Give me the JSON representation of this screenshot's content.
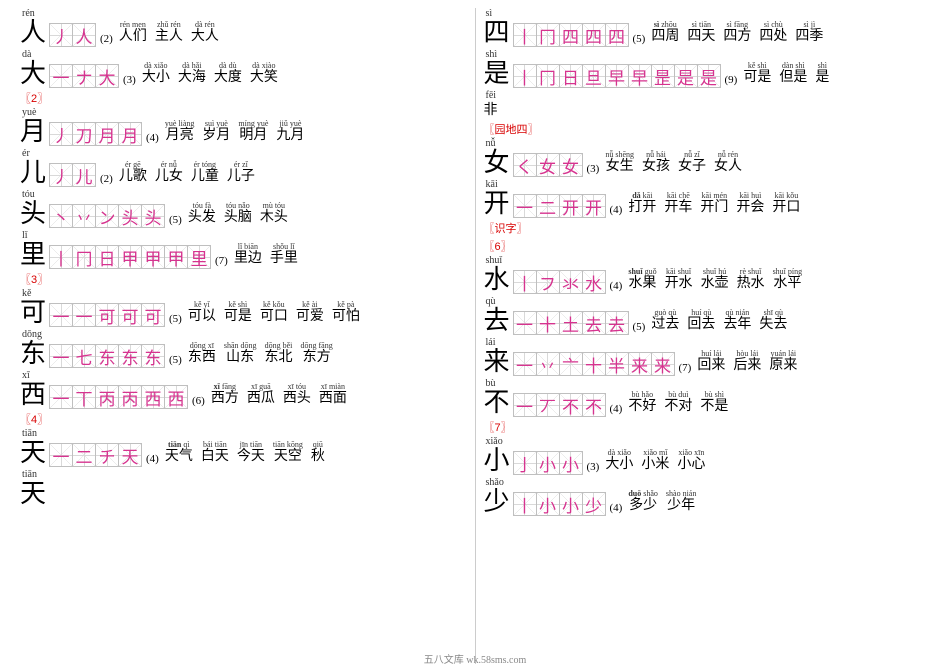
{
  "footer": "五八文库 wk.58sms.com",
  "colors": {
    "stroke": "#d6338f",
    "section": "#d80000",
    "grid": "#d9d9d9",
    "border": "#bfbfbf"
  },
  "left": [
    {
      "type": "entry",
      "pinyin": "rén",
      "char": "人",
      "strokes": [
        "丿",
        "人"
      ],
      "count": "(2)",
      "words": [
        [
          "rén men",
          "人们"
        ],
        [
          "zhǔ rén",
          "主人"
        ],
        [
          "dà rén",
          "大人"
        ]
      ]
    },
    {
      "type": "entry",
      "pinyin": "dà",
      "char": "大",
      "strokes": [
        "一",
        "ナ",
        "大"
      ],
      "count": "(3)",
      "words": [
        [
          "dà xiǎo",
          "大小"
        ],
        [
          "dà hǎi",
          "大海"
        ],
        [
          "dà dù",
          "大度"
        ],
        [
          "dà xiào",
          "大笑"
        ]
      ]
    },
    {
      "type": "section",
      "label": "〖2〗"
    },
    {
      "type": "entry",
      "pinyin": "yuè",
      "char": "月",
      "strokes": [
        "丿",
        "刀",
        "月",
        "月"
      ],
      "count": "(4)",
      "words": [
        [
          "yuè liàng",
          "月亮"
        ],
        [
          "suì yuè",
          "岁月"
        ],
        [
          "míng yuè",
          "明月"
        ],
        [
          "jiǔ yuè",
          "九月"
        ]
      ]
    },
    {
      "type": "entry",
      "pinyin": "ér",
      "char": "儿",
      "strokes": [
        "丿",
        "儿"
      ],
      "count": "(2)",
      "words": [
        [
          "ér gē",
          "儿歌"
        ],
        [
          "ér nǚ",
          "儿女"
        ],
        [
          "ér tóng",
          "儿童"
        ],
        [
          "ér zǐ",
          "儿子"
        ]
      ]
    },
    {
      "type": "entry",
      "pinyin": "tóu",
      "char": "头",
      "strokes": [
        "丶",
        "丷",
        "ン",
        "头",
        "头"
      ],
      "count": "(5)",
      "words": [
        [
          "tóu fà",
          "头发"
        ],
        [
          "tóu nǎo",
          "头脑"
        ],
        [
          "mù tóu",
          "木头"
        ]
      ]
    },
    {
      "type": "entry",
      "pinyin": "lǐ",
      "char": "里",
      "strokes": [
        "丨",
        "冂",
        "日",
        "甲",
        "甲",
        "甲",
        "里"
      ],
      "count": "(7)",
      "words": [
        [
          "lǐ biān",
          "里边"
        ],
        [
          "shǒu lǐ",
          "手里"
        ]
      ]
    },
    {
      "type": "section",
      "label": "〖3〗"
    },
    {
      "type": "entry",
      "pinyin": "kě",
      "char": "可",
      "strokes": [
        "一",
        "一",
        "可",
        "可",
        "可"
      ],
      "count": "(5)",
      "words": [
        [
          "kě yǐ",
          "可以"
        ],
        [
          "kě shì",
          "可是"
        ],
        [
          "kě kǒu",
          "可口"
        ],
        [
          "kě ài",
          "可爱"
        ],
        [
          "kě pà",
          "可怕"
        ]
      ]
    },
    {
      "type": "entry",
      "pinyin": "dōng",
      "char": "东",
      "strokes": [
        "一",
        "七",
        "东",
        "东",
        "东"
      ],
      "count": "(5)",
      "words": [
        [
          "dōng xī",
          "东西"
        ],
        [
          "shān dōng",
          "山东"
        ],
        [
          "dōng běi",
          "东北"
        ],
        [
          "dōng fāng",
          "东方"
        ]
      ]
    },
    {
      "type": "entry",
      "pinyin": "xī",
      "char": "西",
      "strokes": [
        "一",
        "丅",
        "丙",
        "丙",
        "西",
        "西"
      ],
      "count": "(6)",
      "words": [
        [
          "xī fāng",
          "西方",
          "bold"
        ],
        [
          "xī guā",
          "西瓜"
        ],
        [
          "xī tóu",
          "西头"
        ],
        [
          "xī miàn",
          "西面"
        ]
      ]
    },
    {
      "type": "section",
      "label": "〖4〗"
    },
    {
      "type": "entry",
      "pinyin": "tiān",
      "char": "天",
      "strokes": [
        "一",
        "二",
        "チ",
        "天"
      ],
      "count": "(4)",
      "words": [
        [
          "tiān qì",
          "天气",
          "bold"
        ],
        [
          "bái tiān",
          "白天"
        ],
        [
          "jīn tiān",
          "今天"
        ],
        [
          "tiān kōng",
          "天空"
        ],
        [
          "qiū",
          "秋"
        ]
      ]
    },
    {
      "type": "entry",
      "pinyin": "tiān",
      "char": "天",
      "strokes": [],
      "count": "",
      "words": []
    }
  ],
  "right": [
    {
      "type": "entry",
      "pinyin": "sì",
      "char": "四",
      "strokes": [
        "丨",
        "冂",
        "四",
        "四",
        "四"
      ],
      "count": "(5)",
      "words": [
        [
          "sì zhōu",
          "四周",
          "bold"
        ],
        [
          "sì tiān",
          "四天"
        ],
        [
          "sì fāng",
          "四方"
        ],
        [
          "sì chù",
          "四处"
        ],
        [
          "sì jì",
          "四季"
        ]
      ]
    },
    {
      "type": "entry",
      "pinyin": "shì",
      "char": "是",
      "strokes": [
        "丨",
        "冂",
        "日",
        "旦",
        "早",
        "早",
        "昰",
        "是",
        "是"
      ],
      "count": "(9)",
      "words": [
        [
          "kě shì",
          "可是"
        ],
        [
          "dàn shì",
          "但是"
        ],
        [
          "shì",
          "是"
        ]
      ]
    },
    {
      "type": "extra",
      "pinyin": "fēi",
      "char": "非"
    },
    {
      "type": "section",
      "label": "〖园地四〗"
    },
    {
      "type": "entry",
      "pinyin": "nǚ",
      "char": "女",
      "strokes": [
        "く",
        "女",
        "女"
      ],
      "count": "(3)",
      "words": [
        [
          "nǚ shēng",
          "女生"
        ],
        [
          "nǚ hái",
          "女孩"
        ],
        [
          "nǚ zǐ",
          "女子"
        ],
        [
          "nǚ rén",
          "女人"
        ]
      ]
    },
    {
      "type": "entry",
      "pinyin": "kāi",
      "char": "开",
      "strokes": [
        "一",
        "二",
        "开",
        "开"
      ],
      "count": "(4)",
      "words": [
        [
          "dǎ kāi",
          "打开",
          "bold"
        ],
        [
          "kāi chē",
          "开车"
        ],
        [
          "kāi mén",
          "开门"
        ],
        [
          "kāi huì",
          "开会"
        ],
        [
          "kāi kǒu",
          "开口"
        ]
      ]
    },
    {
      "type": "section",
      "label": "〖识字〗"
    },
    {
      "type": "section",
      "label": "〖6〗"
    },
    {
      "type": "entry",
      "pinyin": "shuǐ",
      "char": "水",
      "strokes": [
        "丨",
        "フ",
        "氺",
        "水"
      ],
      "count": "(4)",
      "words": [
        [
          "shuǐ guǒ",
          "水果",
          "bold"
        ],
        [
          "kāi shuǐ",
          "开水"
        ],
        [
          "shuǐ hú",
          "水壶"
        ],
        [
          "rè shuǐ",
          "热水"
        ],
        [
          "shuǐ píng",
          "水平"
        ]
      ]
    },
    {
      "type": "entry",
      "pinyin": "qù",
      "char": "去",
      "strokes": [
        "一",
        "十",
        "土",
        "去",
        "去"
      ],
      "count": "(5)",
      "words": [
        [
          "guò qù",
          "过去"
        ],
        [
          "huí qù",
          "回去"
        ],
        [
          "qù nián",
          "去年"
        ],
        [
          "shī qù",
          "失去"
        ]
      ]
    },
    {
      "type": "entry",
      "pinyin": "lái",
      "char": "来",
      "strokes": [
        "一",
        "丷",
        "亠",
        "十",
        "半",
        "来",
        "来"
      ],
      "count": "(7)",
      "words": [
        [
          "huí lái",
          "回来"
        ],
        [
          "hòu lái",
          "后来"
        ],
        [
          "yuán lái",
          "原来"
        ]
      ]
    },
    {
      "type": "entry",
      "pinyin": "bù",
      "char": "不",
      "strokes": [
        "一",
        "丆",
        "不",
        "不"
      ],
      "count": "(4)",
      "words": [
        [
          "bù hǎo",
          "不好"
        ],
        [
          "bù duì",
          "不对"
        ],
        [
          "bù shì",
          "不是"
        ]
      ]
    },
    {
      "type": "section",
      "label": "〖7〗"
    },
    {
      "type": "entry",
      "pinyin": "xiǎo",
      "char": "小",
      "strokes": [
        "亅",
        "小",
        "小"
      ],
      "count": "(3)",
      "words": [
        [
          "dà xiǎo",
          "大小"
        ],
        [
          "xiǎo mǐ",
          "小米"
        ],
        [
          "xiǎo xīn",
          "小心"
        ]
      ]
    },
    {
      "type": "entry",
      "pinyin": "shǎo",
      "char": "少",
      "strokes": [
        "丨",
        "小",
        "小",
        "少"
      ],
      "count": "(4)",
      "words": [
        [
          "duō shǎo",
          "多少",
          "bold"
        ],
        [
          "shào nián",
          "少年"
        ]
      ]
    }
  ]
}
